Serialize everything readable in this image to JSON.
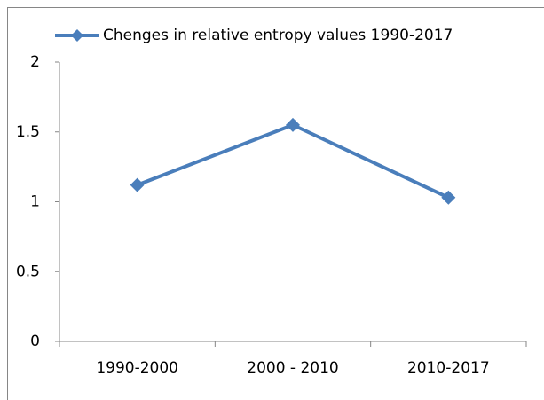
{
  "chart_data": {
    "type": "line",
    "categories": [
      "1990-2000",
      "2000 - 2010",
      "2010-2017"
    ],
    "series": [
      {
        "name": "Chenges in relative entropy values 1990-2017",
        "color": "#4a7ebb",
        "values": [
          1.12,
          1.55,
          1.03
        ]
      }
    ],
    "ylim": [
      0,
      2
    ],
    "yticks": [
      0,
      0.5,
      1,
      1.5,
      2
    ],
    "grid": false,
    "legend": "top"
  }
}
